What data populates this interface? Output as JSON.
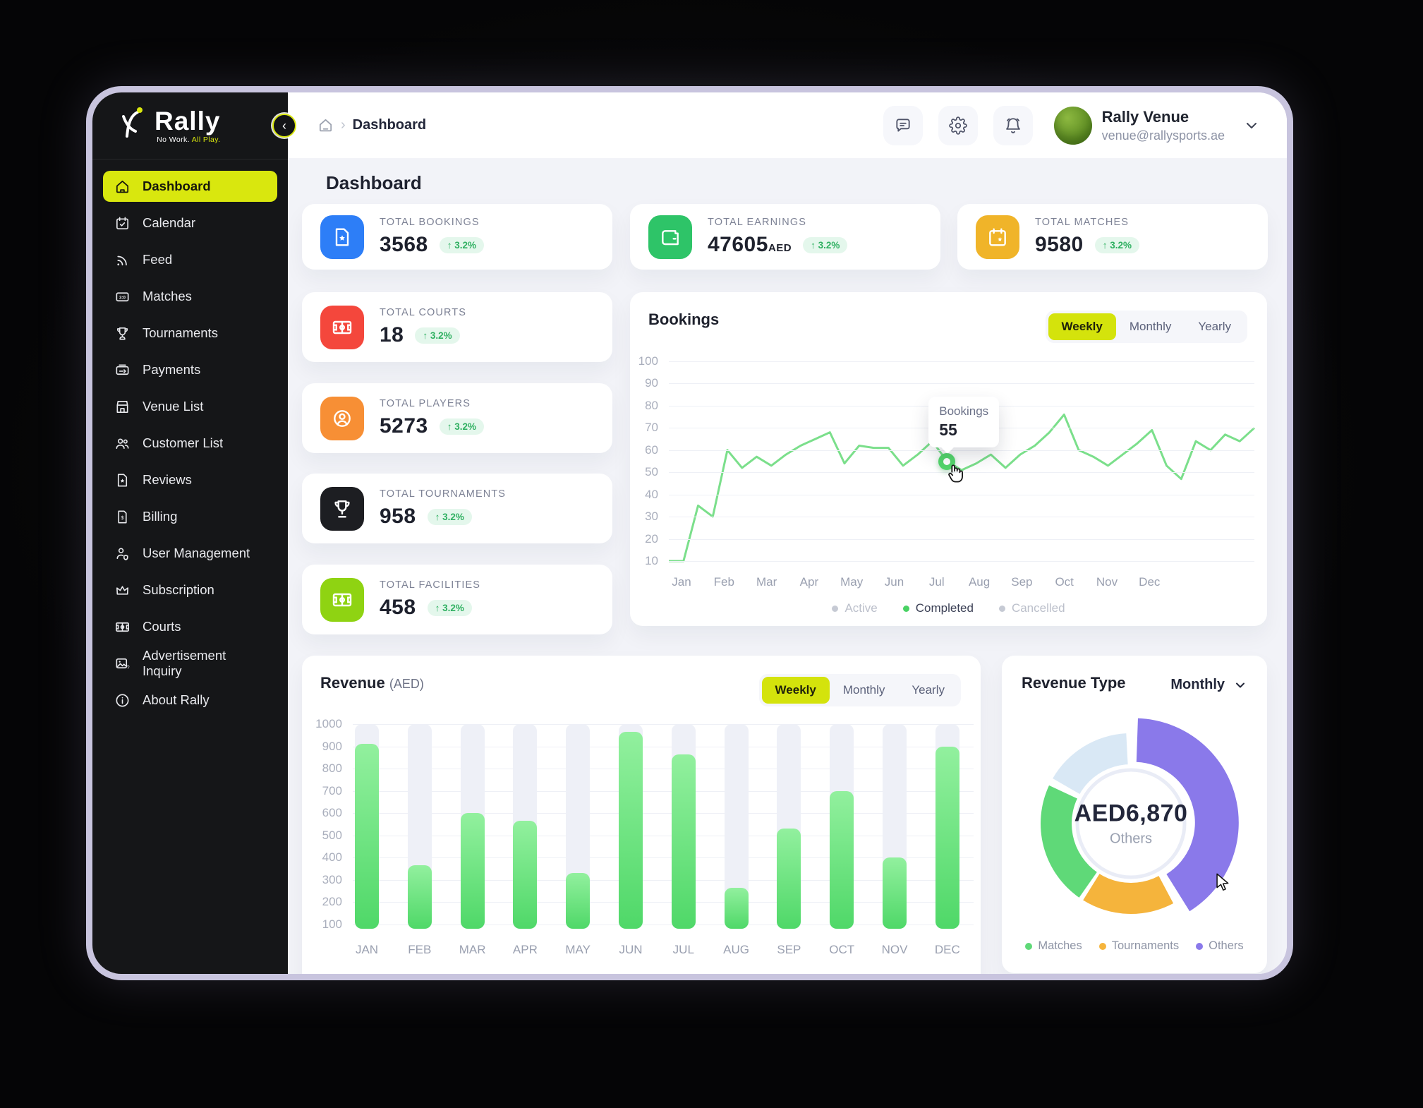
{
  "sidebar": {
    "logo": {
      "brand": "Rally",
      "tagline_1": "No Work.",
      "tagline_2": "All Play."
    },
    "items": [
      {
        "label": "Dashboard",
        "icon": "home-icon",
        "active": true
      },
      {
        "label": "Calendar",
        "icon": "calendar-icon"
      },
      {
        "label": "Feed",
        "icon": "feed-icon"
      },
      {
        "label": "Matches",
        "icon": "scoreboard-icon"
      },
      {
        "label": "Tournaments",
        "icon": "trophy-icon"
      },
      {
        "label": "Payments",
        "icon": "payments-icon"
      },
      {
        "label": "Venue List",
        "icon": "venue-icon"
      },
      {
        "label": "Customer List",
        "icon": "customers-icon"
      },
      {
        "label": "Reviews",
        "icon": "reviews-icon"
      },
      {
        "label": "Billing",
        "icon": "billing-icon"
      },
      {
        "label": "User Management",
        "icon": "user-management-icon"
      },
      {
        "label": "Subscription",
        "icon": "crown-icon"
      },
      {
        "label": "Courts",
        "icon": "court-icon"
      },
      {
        "label": "Advertisement Inquiry",
        "icon": "ad-inquiry-icon"
      },
      {
        "label": "About Rally",
        "icon": "info-icon"
      }
    ]
  },
  "topbar": {
    "breadcrumb_current": "Dashboard",
    "user": {
      "name": "Rally Venue",
      "email": "venue@rallysports.ae"
    }
  },
  "page": {
    "title": "Dashboard"
  },
  "stats": [
    {
      "label": "TOTAL BOOKINGS",
      "value": "3568",
      "delta": "↑ 3.2%",
      "icon": "booking-doc-star-icon",
      "color": "#2d7ef7"
    },
    {
      "label": "TOTAL EARNINGS",
      "value": "47605",
      "unit": "AED",
      "delta": "↑ 3.2%",
      "icon": "wallet-icon",
      "color": "#2ec468"
    },
    {
      "label": "TOTAL MATCHES",
      "value": "9580",
      "delta": "↑ 3.2%",
      "icon": "calendar-star-icon",
      "color": "#f0b429"
    },
    {
      "label": "TOTAL COURTS",
      "value": "18",
      "delta": "↑ 3.2%",
      "icon": "court-red-icon",
      "color": "#f4473c"
    },
    {
      "label": "TOTAL PLAYERS",
      "value": "5273",
      "delta": "↑ 3.2%",
      "icon": "player-icon",
      "color": "#f78f35"
    },
    {
      "label": "TOTAL TOURNAMENTS",
      "value": "958",
      "delta": "↑ 3.2%",
      "icon": "trophy-dark-icon",
      "color": "#1d1e22"
    },
    {
      "label": "TOTAL FACILITIES",
      "value": "458",
      "delta": "↑ 3.2%",
      "icon": "facility-court-icon",
      "color": "#8fd312"
    }
  ],
  "bookings": {
    "title": "Bookings",
    "tabs": [
      "Weekly",
      "Monthly",
      "Yearly"
    ],
    "active_tab": "Weekly",
    "tooltip": {
      "label": "Bookings",
      "value": "55"
    },
    "legend": [
      {
        "label": "Active",
        "state": "disabled"
      },
      {
        "label": "Completed",
        "state": "active"
      },
      {
        "label": "Cancelled",
        "state": "disabled"
      }
    ]
  },
  "revenue": {
    "title": "Revenue",
    "unit": "(AED)",
    "tabs": [
      "Weekly",
      "Monthly",
      "Yearly"
    ],
    "active_tab": "Weekly"
  },
  "revenue_type": {
    "title": "Revenue Type",
    "period": "Monthly",
    "center_value": "AED6,870",
    "center_label": "Others",
    "legend": [
      {
        "label": "Matches",
        "color": "#5fd978"
      },
      {
        "label": "Tournaments",
        "color": "#f5b43c"
      },
      {
        "label": "Others",
        "color": "#8a79ea"
      }
    ]
  },
  "chart_data": [
    {
      "id": "bookings",
      "type": "line",
      "title": "Bookings",
      "x_labels": [
        "Jan",
        "Feb",
        "Mar",
        "Apr",
        "May",
        "Jun",
        "Jul",
        "Aug",
        "Sep",
        "Oct",
        "Nov",
        "Dec"
      ],
      "y_ticks": [
        100,
        90,
        80,
        70,
        60,
        50,
        40,
        30,
        20,
        10
      ],
      "ylim": [
        10,
        100
      ],
      "grid": true,
      "legend_position": "bottom",
      "series": [
        {
          "name": "Completed",
          "color": "#7bdf8b",
          "values": [
            10,
            10,
            35,
            30,
            60,
            52,
            57,
            53,
            58,
            62,
            65,
            68,
            54,
            62,
            61,
            61,
            53,
            58,
            64,
            55,
            51,
            54,
            58,
            52,
            58,
            62,
            68,
            76,
            60,
            57,
            53,
            58,
            63,
            69,
            53,
            47,
            64,
            60,
            67,
            64,
            70
          ]
        }
      ],
      "tooltip": {
        "label": "Bookings",
        "value": 55,
        "point_index": 19
      }
    },
    {
      "id": "revenue",
      "type": "bar",
      "title": "Revenue (AED)",
      "categories": [
        "JAN",
        "FEB",
        "MAR",
        "APR",
        "MAY",
        "JUN",
        "JUL",
        "AUG",
        "SEP",
        "OCT",
        "NOV",
        "DEC"
      ],
      "values": [
        910,
        365,
        600,
        565,
        330,
        965,
        865,
        265,
        530,
        700,
        400,
        900
      ],
      "y_ticks": [
        1000,
        900,
        800,
        700,
        600,
        500,
        400,
        300,
        200,
        100
      ],
      "ylim": [
        100,
        1000
      ],
      "grid": true,
      "bar_color_top": "#92f09e",
      "bar_color_bottom": "#4fd868",
      "track_color": "#eef0f7"
    },
    {
      "id": "revenue_type",
      "type": "pie",
      "title": "Revenue Type",
      "center_value": "AED6,870",
      "center_label": "Others",
      "segments": [
        {
          "label": "Others",
          "color": "#8a79ea",
          "start_deg": 2,
          "end_deg": 148,
          "percent": 41,
          "highlight": true
        },
        {
          "label": "Tournaments",
          "color": "#f5b43c",
          "start_deg": 152,
          "end_deg": 212,
          "percent": 17
        },
        {
          "label": "Matches",
          "color": "#5fd978",
          "start_deg": 215,
          "end_deg": 295,
          "percent": 22
        },
        {
          "label": "",
          "color": "#d9e8f5",
          "start_deg": 300,
          "end_deg": 357,
          "percent": 16
        }
      ],
      "legend_position": "bottom"
    }
  ]
}
